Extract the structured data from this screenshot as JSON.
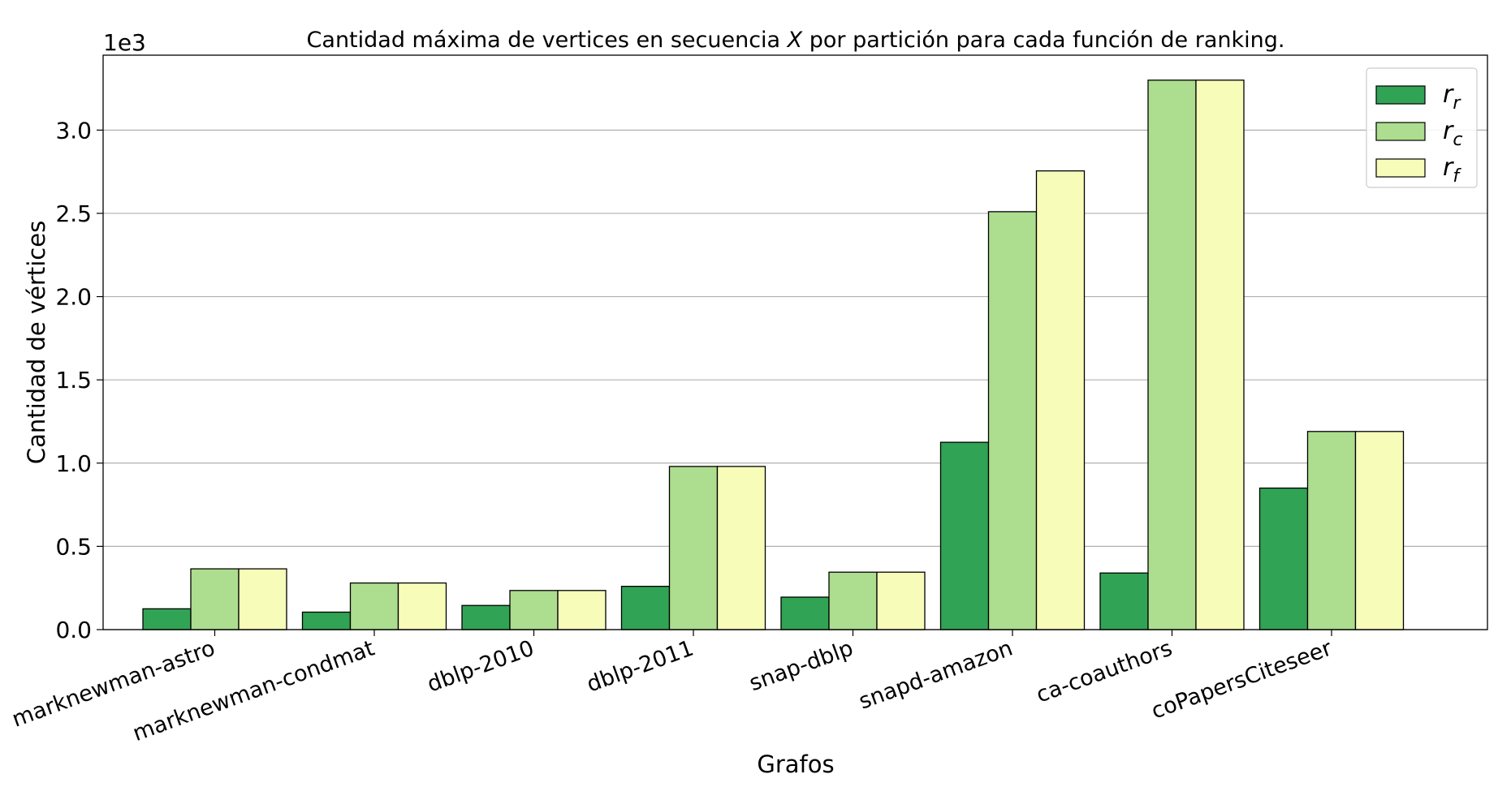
{
  "chart_data": {
    "type": "bar",
    "title": "Cantidad máxima de vertices en secuencia X por partición para cada función de ranking.",
    "title_parts": [
      "Cantidad máxima de vertices en secuencia ",
      "X",
      " por partición para cada función de ranking."
    ],
    "xlabel": "Grafos",
    "ylabel": "Cantidad de vértices",
    "y_multiplier": "1e3",
    "ylim": [
      0,
      3.45
    ],
    "yticks": [
      "0.0",
      "0.5",
      "1.0",
      "1.5",
      "2.0",
      "2.5",
      "3.0"
    ],
    "grid": "horizontal",
    "legend_position": "top-right",
    "categories": [
      "marknewman-astro",
      "marknewman-condmat",
      "dblp-2010",
      "dblp-2011",
      "snap-dblp",
      "snapd-amazon",
      "ca-coauthors",
      "coPapersCiteseer"
    ],
    "series": [
      {
        "name": "r_r",
        "sym": "r",
        "sub": "r",
        "color": "#31a354",
        "values": [
          0.125,
          0.105,
          0.145,
          0.26,
          0.195,
          1.125,
          0.34,
          0.85
        ]
      },
      {
        "name": "r_c",
        "sym": "r",
        "sub": "c",
        "color": "#addd8e",
        "values": [
          0.365,
          0.28,
          0.235,
          0.98,
          0.345,
          2.51,
          3.3,
          1.19
        ]
      },
      {
        "name": "r_f",
        "sym": "r",
        "sub": "f",
        "color": "#f7fcb9",
        "values": [
          0.365,
          0.28,
          0.235,
          0.98,
          0.345,
          2.755,
          3.3,
          1.19
        ]
      }
    ]
  }
}
